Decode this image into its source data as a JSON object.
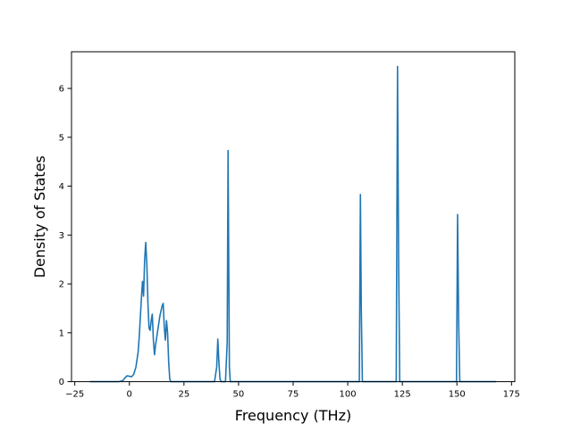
{
  "chart_data": {
    "type": "line",
    "xlabel": "Frequency (THz)",
    "ylabel": "Density of States",
    "xlim": [
      -26.5,
      176.5
    ],
    "ylim": [
      0,
      6.75
    ],
    "xticks": [
      -25,
      0,
      25,
      50,
      75,
      100,
      125,
      150,
      175
    ],
    "yticks": [
      0,
      1,
      2,
      3,
      4,
      5,
      6
    ],
    "grid": false,
    "legend": "none",
    "colors": {
      "line": "#1f77b4",
      "axes": "#000000",
      "background": "#ffffff"
    },
    "series": [
      {
        "x": [
          -18,
          -5,
          -3,
          -2,
          -1,
          0,
          1,
          2,
          3,
          4,
          4.5,
          5,
          5.5,
          6,
          6.5,
          7,
          7.5,
          8,
          8.5,
          9,
          9.5,
          10,
          10.5,
          11,
          11.5,
          12,
          13,
          14,
          15,
          15.5,
          16,
          16.5,
          17,
          17.5,
          18,
          18.5,
          19,
          20,
          30,
          39,
          40,
          40.5,
          41,
          41.5,
          42,
          44,
          44.8,
          45.2,
          45.5,
          45.8,
          46.2,
          47,
          60,
          100,
          105.3,
          105.8,
          106.2,
          106.7,
          107.5,
          115,
          122.2,
          122.8,
          123.3,
          123.8,
          124.5,
          130,
          149.8,
          150.3,
          150.8,
          151.3,
          152,
          160,
          168
        ],
        "y": [
          0,
          0,
          0.02,
          0.08,
          0.12,
          0.11,
          0.1,
          0.15,
          0.3,
          0.6,
          0.9,
          1.3,
          1.7,
          2.05,
          1.75,
          2.5,
          2.85,
          2.4,
          1.6,
          1.1,
          1.05,
          1.25,
          1.38,
          0.85,
          0.55,
          0.75,
          1.05,
          1.35,
          1.55,
          1.6,
          1.1,
          0.85,
          1.25,
          1.0,
          0.4,
          0.05,
          0,
          0,
          0,
          0,
          0.3,
          0.87,
          0.4,
          0.05,
          0,
          0,
          0.8,
          4.73,
          2.5,
          0.3,
          0,
          0,
          0,
          0,
          0,
          3.83,
          1.5,
          0,
          0,
          0,
          0,
          6.45,
          2.5,
          0,
          0,
          0,
          0,
          3.42,
          1.2,
          0,
          0,
          0,
          0
        ]
      }
    ]
  }
}
